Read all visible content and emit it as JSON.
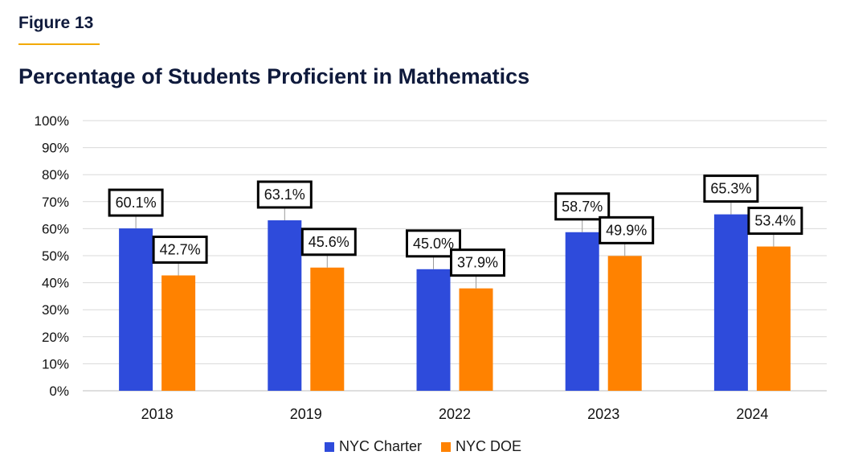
{
  "header": {
    "figure_label": "Figure 13"
  },
  "colors": {
    "accent_rule": "#f2a900",
    "heading": "#0f1a3c"
  },
  "chart_data": {
    "type": "bar",
    "title": "Percentage of Students Proficient in Mathematics",
    "xlabel": "",
    "ylabel": "",
    "categories": [
      "2018",
      "2019",
      "2022",
      "2023",
      "2024"
    ],
    "series": [
      {
        "name": "NYC Charter",
        "color": "#2e4bdb",
        "values": [
          60.1,
          63.1,
          45.0,
          58.7,
          65.3
        ],
        "labels": [
          "60.1%",
          "63.1%",
          "45.0%",
          "58.7%",
          "65.3%"
        ]
      },
      {
        "name": "NYC DOE",
        "color": "#ff8200",
        "values": [
          42.7,
          45.6,
          37.9,
          49.9,
          53.4
        ],
        "labels": [
          "42.7%",
          "45.6%",
          "37.9%",
          "49.9%",
          "53.4%"
        ]
      }
    ],
    "ylim": [
      0,
      100
    ],
    "yticks": [
      0,
      10,
      20,
      30,
      40,
      50,
      60,
      70,
      80,
      90,
      100
    ],
    "ytick_labels": [
      "0%",
      "10%",
      "20%",
      "30%",
      "40%",
      "50%",
      "60%",
      "70%",
      "80%",
      "90%",
      "100%"
    ],
    "grid": true,
    "legend_position": "bottom"
  }
}
